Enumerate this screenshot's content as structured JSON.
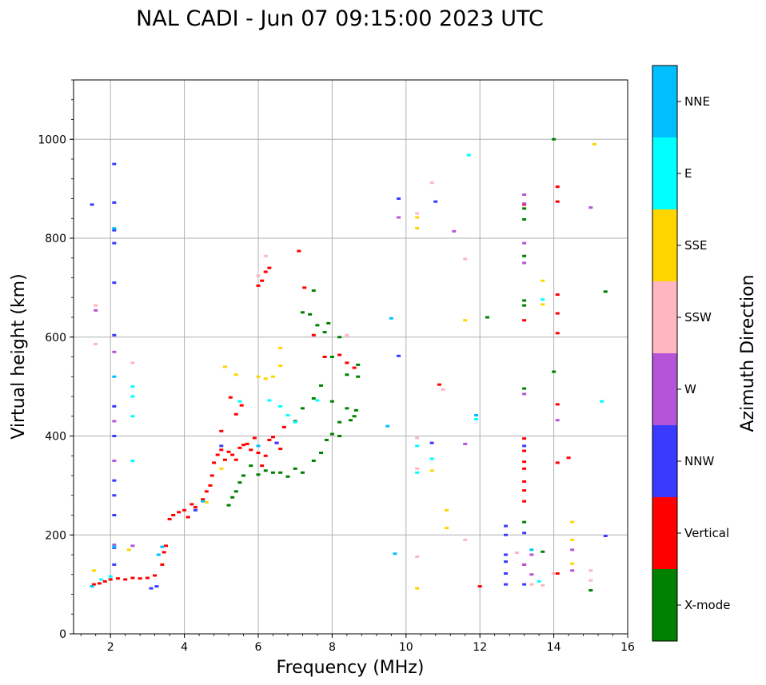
{
  "chart_data": {
    "type": "scatter",
    "title": "NAL CADI - Jun 07 09:15:00 2023 UTC",
    "xlabel": "Frequency (MHz)",
    "ylabel": "Virtual height (km)",
    "xlim": [
      1,
      16
    ],
    "ylim": [
      0,
      1120
    ],
    "xticks": [
      2,
      4,
      6,
      8,
      10,
      12,
      14,
      16
    ],
    "yticks": [
      0,
      200,
      400,
      600,
      800,
      1000
    ],
    "grid": true,
    "colorbar": {
      "label": "Azimuth Direction",
      "categories": [
        {
          "name": "X-mode",
          "color": "#008000"
        },
        {
          "name": "Vertical",
          "color": "#ff0000"
        },
        {
          "name": "NNW",
          "color": "#3a3aff"
        },
        {
          "name": "W",
          "color": "#b455d9"
        },
        {
          "name": "SSW",
          "color": "#ffb6c1"
        },
        {
          "name": "SSE",
          "color": "#ffd500"
        },
        {
          "name": "E",
          "color": "#00ffff"
        },
        {
          "name": "NNE",
          "color": "#00bfff"
        }
      ]
    },
    "series": [
      {
        "name": "Vertical",
        "color": "#ff0000",
        "points": [
          [
            1.55,
            100
          ],
          [
            1.7,
            102
          ],
          [
            1.85,
            106
          ],
          [
            2.0,
            110
          ],
          [
            2.2,
            112
          ],
          [
            2.4,
            110
          ],
          [
            2.6,
            113
          ],
          [
            2.8,
            112
          ],
          [
            3.0,
            113
          ],
          [
            3.2,
            118
          ],
          [
            3.4,
            140
          ],
          [
            3.45,
            165
          ],
          [
            3.5,
            178
          ],
          [
            3.6,
            232
          ],
          [
            3.7,
            240
          ],
          [
            3.85,
            246
          ],
          [
            4.0,
            250
          ],
          [
            4.1,
            236
          ],
          [
            4.2,
            262
          ],
          [
            4.3,
            256
          ],
          [
            4.5,
            272
          ],
          [
            4.6,
            288
          ],
          [
            4.7,
            300
          ],
          [
            4.75,
            320
          ],
          [
            4.8,
            346
          ],
          [
            4.9,
            362
          ],
          [
            5.0,
            372
          ],
          [
            5.0,
            410
          ],
          [
            5.1,
            352
          ],
          [
            5.2,
            368
          ],
          [
            5.3,
            362
          ],
          [
            5.4,
            352
          ],
          [
            5.5,
            376
          ],
          [
            5.6,
            382
          ],
          [
            5.7,
            384
          ],
          [
            5.8,
            372
          ],
          [
            5.9,
            396
          ],
          [
            6.0,
            366
          ],
          [
            6.1,
            340
          ],
          [
            6.2,
            360
          ],
          [
            6.3,
            392
          ],
          [
            6.4,
            398
          ],
          [
            6.5,
            386
          ],
          [
            6.6,
            374
          ],
          [
            6.7,
            418
          ],
          [
            5.25,
            478
          ],
          [
            5.4,
            444
          ],
          [
            5.55,
            462
          ],
          [
            6.0,
            704
          ],
          [
            6.1,
            714
          ],
          [
            6.2,
            732
          ],
          [
            6.3,
            740
          ],
          [
            7.1,
            774
          ],
          [
            7.25,
            700
          ],
          [
            7.5,
            604
          ],
          [
            7.8,
            560
          ],
          [
            8.2,
            564
          ],
          [
            8.4,
            548
          ],
          [
            8.6,
            538
          ],
          [
            10.9,
            504
          ],
          [
            12.0,
            96
          ],
          [
            13.2,
            140
          ],
          [
            13.2,
            348
          ],
          [
            13.2,
            370
          ],
          [
            13.2,
            395
          ],
          [
            13.2,
            268
          ],
          [
            13.2,
            290
          ],
          [
            13.2,
            308
          ],
          [
            13.2,
            334
          ],
          [
            13.2,
            634
          ],
          [
            13.2,
            868
          ],
          [
            14.1,
            122
          ],
          [
            14.1,
            346
          ],
          [
            14.1,
            464
          ],
          [
            14.1,
            608
          ],
          [
            14.1,
            648
          ],
          [
            14.1,
            686
          ],
          [
            14.1,
            874
          ],
          [
            14.1,
            904
          ],
          [
            14.4,
            356
          ]
        ]
      },
      {
        "name": "X-mode",
        "color": "#008000",
        "points": [
          [
            5.2,
            260
          ],
          [
            5.3,
            276
          ],
          [
            5.4,
            288
          ],
          [
            5.5,
            306
          ],
          [
            5.6,
            320
          ],
          [
            5.8,
            340
          ],
          [
            6.0,
            322
          ],
          [
            6.2,
            330
          ],
          [
            6.4,
            326
          ],
          [
            6.6,
            326
          ],
          [
            6.8,
            318
          ],
          [
            7.0,
            334
          ],
          [
            7.2,
            326
          ],
          [
            7.5,
            350
          ],
          [
            7.7,
            366
          ],
          [
            7.85,
            392
          ],
          [
            8.0,
            404
          ],
          [
            8.2,
            400
          ],
          [
            8.5,
            432
          ],
          [
            8.6,
            440
          ],
          [
            8.65,
            452
          ],
          [
            8.7,
            520
          ],
          [
            8.7,
            544
          ],
          [
            8.4,
            524
          ],
          [
            8.2,
            600
          ],
          [
            8.0,
            560
          ],
          [
            7.9,
            628
          ],
          [
            7.8,
            610
          ],
          [
            7.6,
            624
          ],
          [
            7.5,
            694
          ],
          [
            7.4,
            646
          ],
          [
            7.2,
            650
          ],
          [
            7.0,
            430
          ],
          [
            7.2,
            456
          ],
          [
            7.5,
            476
          ],
          [
            7.7,
            502
          ],
          [
            8.0,
            470
          ],
          [
            8.2,
            428
          ],
          [
            8.4,
            456
          ],
          [
            12.2,
            640
          ],
          [
            13.2,
            226
          ],
          [
            13.2,
            496
          ],
          [
            13.2,
            664
          ],
          [
            13.2,
            674
          ],
          [
            13.2,
            764
          ],
          [
            13.2,
            838
          ],
          [
            13.2,
            860
          ],
          [
            13.7,
            166
          ],
          [
            14.0,
            530
          ],
          [
            14.0,
            1000
          ],
          [
            15.0,
            88
          ],
          [
            15.4,
            692
          ]
        ]
      },
      {
        "name": "NNW",
        "color": "#3a3aff",
        "points": [
          [
            1.5,
            868
          ],
          [
            2.1,
            950
          ],
          [
            2.1,
            872
          ],
          [
            2.1,
            816
          ],
          [
            2.1,
            790
          ],
          [
            2.1,
            710
          ],
          [
            2.1,
            604
          ],
          [
            2.1,
            460
          ],
          [
            2.1,
            400
          ],
          [
            2.1,
            310
          ],
          [
            2.1,
            280
          ],
          [
            2.1,
            240
          ],
          [
            2.1,
            174
          ],
          [
            2.1,
            140
          ],
          [
            3.1,
            92
          ],
          [
            3.25,
            96
          ],
          [
            4.3,
            250
          ],
          [
            5.0,
            380
          ],
          [
            6.5,
            386
          ],
          [
            9.8,
            880
          ],
          [
            9.8,
            562
          ],
          [
            10.8,
            874
          ],
          [
            10.7,
            386
          ],
          [
            12.7,
            100
          ],
          [
            12.7,
            122
          ],
          [
            12.7,
            146
          ],
          [
            12.7,
            160
          ],
          [
            12.7,
            200
          ],
          [
            12.7,
            218
          ],
          [
            13.2,
            100
          ],
          [
            13.2,
            204
          ],
          [
            13.2,
            380
          ],
          [
            15.4,
            198
          ]
        ]
      },
      {
        "name": "W",
        "color": "#b455d9",
        "points": [
          [
            1.6,
            654
          ],
          [
            2.1,
            570
          ],
          [
            2.1,
            430
          ],
          [
            2.1,
            350
          ],
          [
            2.1,
            180
          ],
          [
            2.6,
            178
          ],
          [
            9.8,
            842
          ],
          [
            11.3,
            814
          ],
          [
            11.6,
            384
          ],
          [
            13.2,
            140
          ],
          [
            13.2,
            485
          ],
          [
            13.2,
            750
          ],
          [
            13.2,
            790
          ],
          [
            13.2,
            870
          ],
          [
            13.2,
            888
          ],
          [
            13.4,
            160
          ],
          [
            13.4,
            120
          ],
          [
            14.1,
            432
          ],
          [
            14.5,
            170
          ],
          [
            14.5,
            128
          ],
          [
            15.0,
            862
          ]
        ]
      },
      {
        "name": "SSW",
        "color": "#ffb6c1",
        "points": [
          [
            1.6,
            586
          ],
          [
            1.6,
            664
          ],
          [
            2.6,
            548
          ],
          [
            6.0,
            724
          ],
          [
            6.2,
            764
          ],
          [
            8.4,
            604
          ],
          [
            10.3,
            334
          ],
          [
            10.3,
            156
          ],
          [
            10.3,
            850
          ],
          [
            10.3,
            396
          ],
          [
            10.7,
            912
          ],
          [
            11.0,
            494
          ],
          [
            11.6,
            758
          ],
          [
            11.6,
            190
          ],
          [
            13.0,
            164
          ],
          [
            13.4,
            100
          ],
          [
            13.7,
            98
          ],
          [
            14.0,
            122
          ],
          [
            15.0,
            108
          ],
          [
            15.0,
            128
          ]
        ]
      },
      {
        "name": "SSE",
        "color": "#ffd500",
        "points": [
          [
            1.55,
            128
          ],
          [
            2.5,
            170
          ],
          [
            4.6,
            266
          ],
          [
            5.0,
            334
          ],
          [
            5.1,
            540
          ],
          [
            5.4,
            524
          ],
          [
            6.0,
            520
          ],
          [
            6.2,
            516
          ],
          [
            6.4,
            520
          ],
          [
            6.6,
            542
          ],
          [
            6.6,
            578
          ],
          [
            10.3,
            92
          ],
          [
            10.3,
            820
          ],
          [
            10.3,
            842
          ],
          [
            10.7,
            330
          ],
          [
            11.1,
            214
          ],
          [
            11.1,
            250
          ],
          [
            11.6,
            634
          ],
          [
            13.7,
            666
          ],
          [
            13.7,
            714
          ],
          [
            14.5,
            190
          ],
          [
            14.5,
            226
          ],
          [
            14.5,
            142
          ],
          [
            15.1,
            990
          ]
        ]
      },
      {
        "name": "E",
        "color": "#00ffff",
        "points": [
          [
            1.75,
            110
          ],
          [
            2.0,
            116
          ],
          [
            2.6,
            350
          ],
          [
            2.6,
            440
          ],
          [
            2.6,
            480
          ],
          [
            2.6,
            500
          ],
          [
            5.5,
            470
          ],
          [
            6.3,
            472
          ],
          [
            6.6,
            460
          ],
          [
            6.8,
            442
          ],
          [
            7.0,
            428
          ],
          [
            7.6,
            472
          ],
          [
            10.3,
            326
          ],
          [
            10.3,
            380
          ],
          [
            10.7,
            354
          ],
          [
            11.7,
            968
          ],
          [
            11.9,
            434
          ],
          [
            13.6,
            106
          ],
          [
            13.7,
            676
          ],
          [
            15.3,
            470
          ]
        ]
      },
      {
        "name": "NNE",
        "color": "#00bfff",
        "points": [
          [
            1.5,
            96
          ],
          [
            2.1,
            820
          ],
          [
            2.1,
            520
          ],
          [
            2.1,
            176
          ],
          [
            3.3,
            160
          ],
          [
            3.4,
            176
          ],
          [
            4.5,
            268
          ],
          [
            6.0,
            380
          ],
          [
            9.5,
            420
          ],
          [
            9.6,
            638
          ],
          [
            9.7,
            162
          ],
          [
            11.9,
            442
          ],
          [
            13.4,
            170
          ]
        ]
      }
    ]
  }
}
